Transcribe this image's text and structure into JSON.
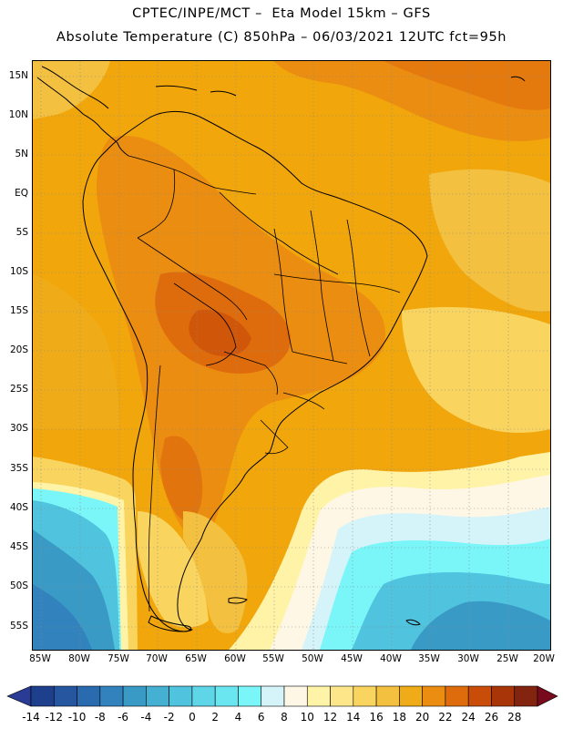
{
  "header": {
    "title_line1": "CPTEC/INPE/MCT –  Eta Model 15km – GFS",
    "title_line2": "Absolute Temperature (C) 850hPa – 06/03/2021 12UTC fct=95h"
  },
  "map": {
    "lat_labels": [
      "15N",
      "10N",
      "5N",
      "EQ",
      "5S",
      "10S",
      "15S",
      "20S",
      "25S",
      "30S",
      "35S",
      "40S",
      "45S",
      "50S",
      "55S"
    ],
    "lon_labels": [
      "85W",
      "80W",
      "75W",
      "70W",
      "65W",
      "60W",
      "55W",
      "50W",
      "45W",
      "40W",
      "35W",
      "30W",
      "25W",
      "20W"
    ]
  },
  "colorbar": {
    "labels": [
      "-14",
      "-12",
      "-10",
      "-8",
      "-6",
      "-4",
      "-2",
      "0",
      "2",
      "4",
      "6",
      "8",
      "10",
      "12",
      "14",
      "16",
      "18",
      "20",
      "22",
      "24",
      "26",
      "28"
    ],
    "colors": [
      "#1e3f8c",
      "#25569f",
      "#2a6aae",
      "#3282bd",
      "#3a9ac6",
      "#44b0d2",
      "#50c3de",
      "#5fd6e8",
      "#6ae6f0",
      "#7af6f9",
      "#d4f4fa",
      "#fff7e6",
      "#fff3a8",
      "#fde68a",
      "#f9d560",
      "#f3c040",
      "#f0ac18",
      "#eb8d10",
      "#df6c0c",
      "#c94d08",
      "#a83508",
      "#822410"
    ],
    "end_colors": {
      "left": "#283c96",
      "right": "#780a1e"
    }
  }
}
